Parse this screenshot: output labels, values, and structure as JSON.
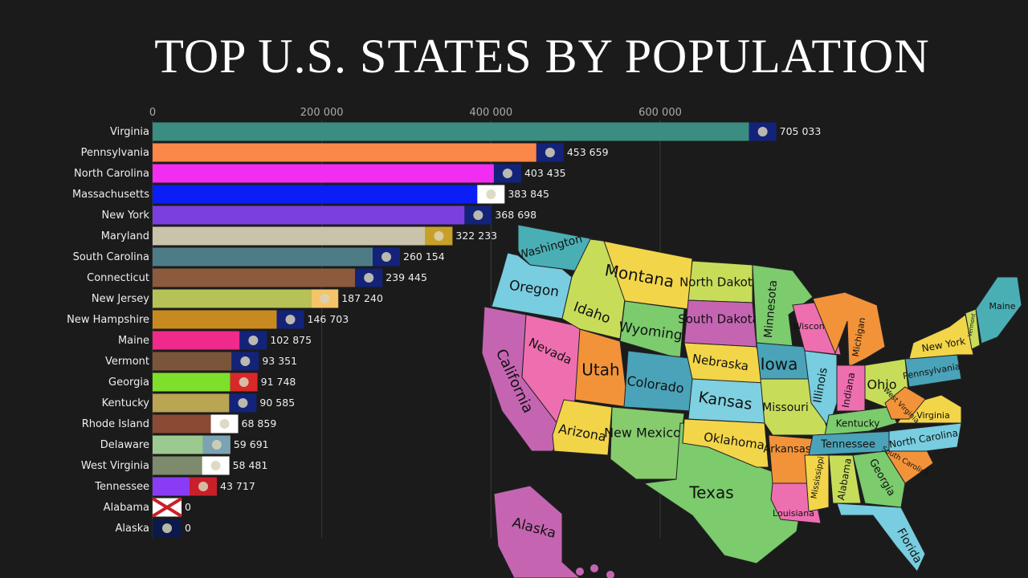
{
  "title": "TOP U.S. STATES BY POPULATION",
  "chart_data": {
    "type": "bar",
    "orientation": "horizontal",
    "title": "TOP U.S. STATES BY POPULATION",
    "xlim": [
      0,
      705033
    ],
    "x_ticks": [
      0,
      200000,
      400000,
      600000
    ],
    "x_tick_labels": [
      "0",
      "200 000",
      "400 000",
      "600 000"
    ],
    "grid": true,
    "categories": [
      "Virginia",
      "Pennsylvania",
      "North Carolina",
      "Massachusetts",
      "New York",
      "Maryland",
      "South Carolina",
      "Connecticut",
      "New Jersey",
      "New Hampshire",
      "Maine",
      "Vermont",
      "Georgia",
      "Kentucky",
      "Rhode Island",
      "Delaware",
      "West Virginia",
      "Tennessee",
      "Alabama",
      "Alaska"
    ],
    "values": [
      705033,
      453659,
      403435,
      383845,
      368698,
      322233,
      260154,
      239445,
      187240,
      146703,
      102875,
      93351,
      91748,
      90585,
      68859,
      59691,
      58481,
      43717,
      0,
      0
    ],
    "value_labels": [
      "705 033",
      "453 659",
      "403 435",
      "383 845",
      "368 698",
      "322 233",
      "260 154",
      "239 445",
      "187 240",
      "146 703",
      "102 875",
      "93 351",
      "91 748",
      "90 585",
      "68 859",
      "59 691",
      "58 481",
      "43 717",
      "0",
      "0"
    ],
    "colors": [
      "#3a8d80",
      "#fb8748",
      "#f32cf1",
      "#0a1ef5",
      "#7b3fe0",
      "#c8c3aa",
      "#4e7c86",
      "#8c5a3c",
      "#b6c157",
      "#c88a1f",
      "#ef2a8a",
      "#7b553a",
      "#7ee02a",
      "#b9a552",
      "#8b4a33",
      "#9cc990",
      "#7d8a6b",
      "#8a3cf5",
      "#ffffff",
      "#ffffff"
    ],
    "flag_colors": [
      "#13237a",
      "#13237a",
      "#13237a",
      "#ffffff",
      "#13237a",
      "#c8a028",
      "#13237a",
      "#13237a",
      "#f5c46a",
      "#13237a",
      "#13237a",
      "#13237a",
      "#d8282a",
      "#13237a",
      "#ffffff",
      "#7ba3b3",
      "#ffffff",
      "#c8202a",
      "#ffffff",
      "#0b1a4a"
    ]
  },
  "map": {
    "states": [
      {
        "name": "Washington",
        "color": "#4aaeb5"
      },
      {
        "name": "Oregon",
        "color": "#78cde0"
      },
      {
        "name": "California",
        "color": "#c565b2"
      },
      {
        "name": "Nevada",
        "color": "#ee6fb0"
      },
      {
        "name": "Idaho",
        "color": "#c7dd5a"
      },
      {
        "name": "Montana",
        "color": "#f3d549"
      },
      {
        "name": "Wyoming",
        "color": "#7ccb6d"
      },
      {
        "name": "Utah",
        "color": "#f2933a"
      },
      {
        "name": "Colorado",
        "color": "#4aa3b8"
      },
      {
        "name": "Arizona",
        "color": "#f2d449"
      },
      {
        "name": "New Mexico",
        "color": "#86cc6c"
      },
      {
        "name": "Texas",
        "color": "#7ccb6d"
      },
      {
        "name": "North Dakota",
        "color": "#c7dd5a"
      },
      {
        "name": "South Dakota",
        "color": "#c565b2"
      },
      {
        "name": "Nebraska",
        "color": "#f3d549"
      },
      {
        "name": "Kansas",
        "color": "#7fd0e0"
      },
      {
        "name": "Oklahoma",
        "color": "#f3d549"
      },
      {
        "name": "Minnesota",
        "color": "#7ccb6d"
      },
      {
        "name": "Iowa",
        "color": "#4aa3b8"
      },
      {
        "name": "Missouri",
        "color": "#c7dd5a"
      },
      {
        "name": "Arkansas",
        "color": "#f2933a"
      },
      {
        "name": "Louisiana",
        "color": "#ee6fb0"
      },
      {
        "name": "Wisconsin",
        "color": "#ee6fb0"
      },
      {
        "name": "Illinois",
        "color": "#78cde0"
      },
      {
        "name": "Michigan",
        "color": "#f2933a"
      },
      {
        "name": "Indiana",
        "color": "#ee6fb0"
      },
      {
        "name": "Ohio",
        "color": "#c7dd5a"
      },
      {
        "name": "Kentucky",
        "color": "#7ccb6d"
      },
      {
        "name": "Tennessee",
        "color": "#4aa3b8"
      },
      {
        "name": "Mississippi",
        "color": "#f3d549"
      },
      {
        "name": "Alabama",
        "color": "#c7dd5a"
      },
      {
        "name": "Georgia",
        "color": "#7ccb6d"
      },
      {
        "name": "Florida",
        "color": "#78cde0"
      },
      {
        "name": "South Carolina",
        "color": "#f2933a"
      },
      {
        "name": "North Carolina",
        "color": "#78cde0"
      },
      {
        "name": "Virginia",
        "color": "#f3d549"
      },
      {
        "name": "West Virginia",
        "color": "#f2933a"
      },
      {
        "name": "Pennsylvania",
        "color": "#4aa3b8"
      },
      {
        "name": "New York",
        "color": "#f3d549"
      },
      {
        "name": "Maine",
        "color": "#4aaeb5"
      },
      {
        "name": "Vermont",
        "color": "#c7dd5a"
      },
      {
        "name": "Alaska",
        "color": "#c565b2"
      }
    ]
  }
}
